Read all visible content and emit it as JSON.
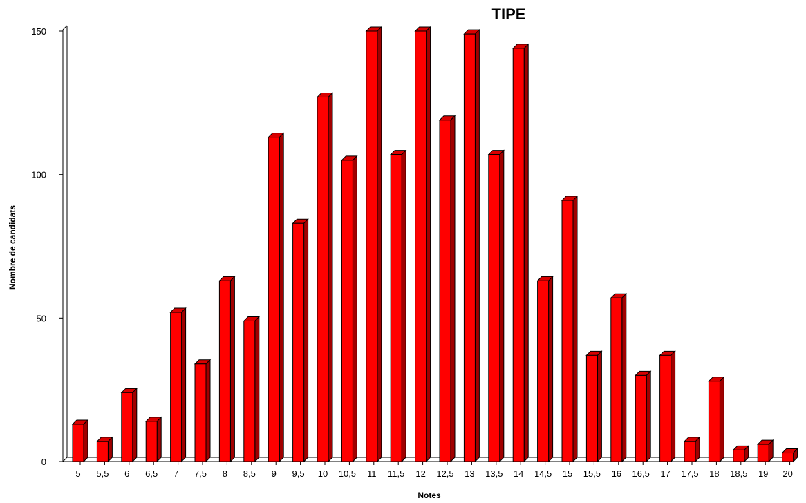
{
  "chart_data": {
    "type": "bar",
    "title": "TIPE",
    "xlabel": "Notes",
    "ylabel": "Nombre de candidats",
    "ylim": [
      0,
      150
    ],
    "yticks": [
      "0",
      "50",
      "100",
      "150"
    ],
    "grid": false,
    "categories": [
      "5",
      "5,5",
      "6",
      "6,5",
      "7",
      "7,5",
      "8",
      "8,5",
      "9",
      "9,5",
      "10",
      "10,5",
      "11",
      "11,5",
      "12",
      "12,5",
      "13",
      "13,5",
      "14",
      "14,5",
      "15",
      "15,5",
      "16",
      "16,5",
      "17",
      "17,5",
      "18",
      "18,5",
      "19",
      "20"
    ],
    "values": [
      13,
      7,
      24,
      14,
      52,
      34,
      63,
      49,
      113,
      83,
      127,
      105,
      150,
      107,
      150,
      119,
      149,
      107,
      144,
      63,
      91,
      37,
      57,
      30,
      37,
      7,
      28,
      4,
      6,
      3
    ],
    "bar_color": "#ff0000",
    "bar_side_color": "#a00000",
    "bar_top_color": "#d80000"
  }
}
